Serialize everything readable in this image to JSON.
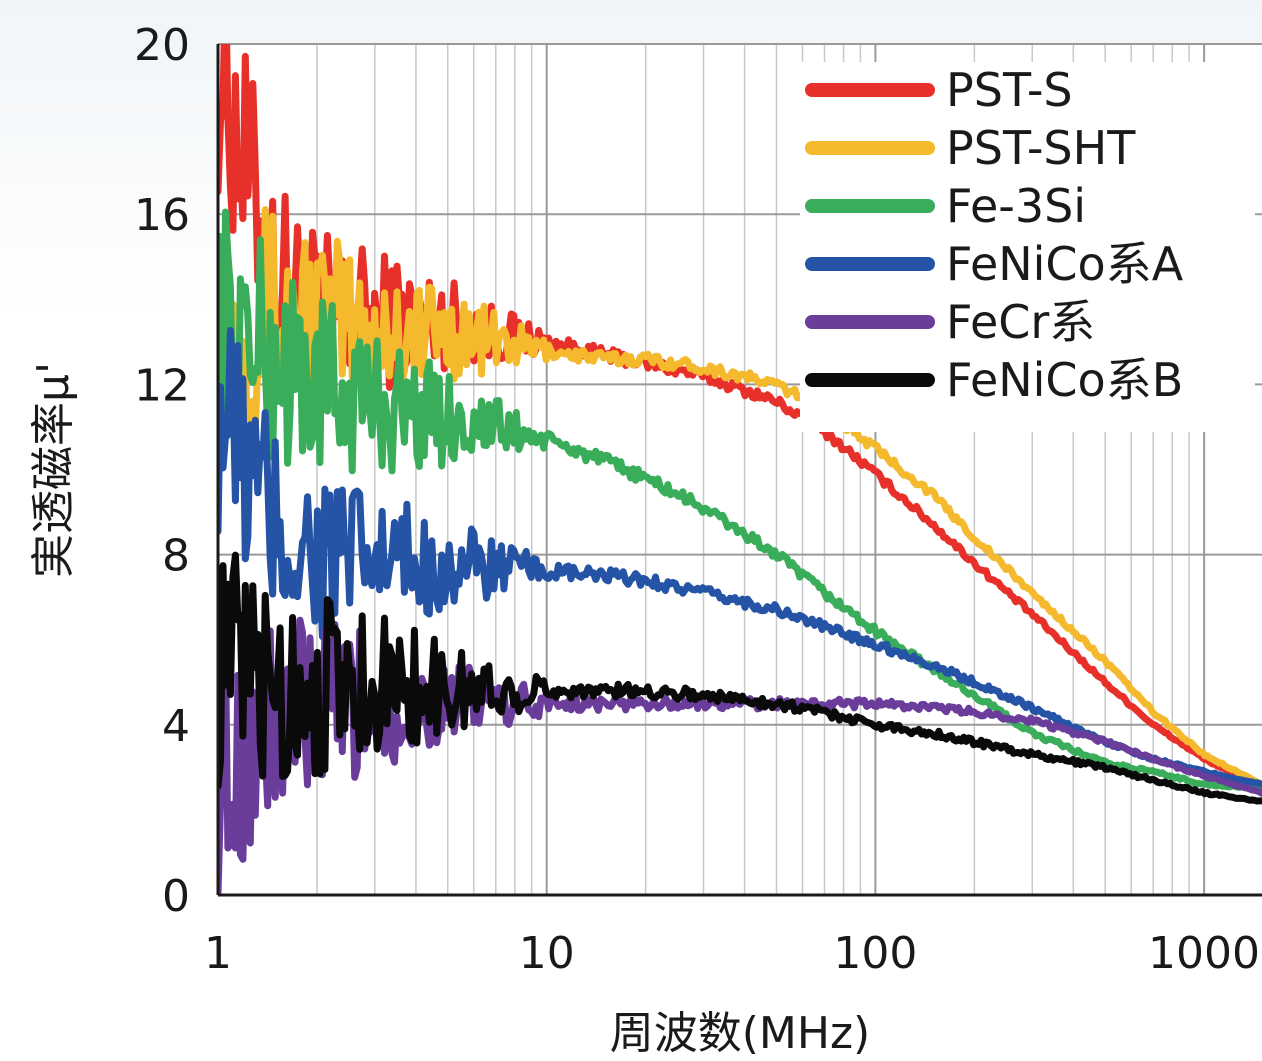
{
  "chart_data": {
    "type": "line",
    "xscale": "log",
    "xlim": [
      1,
      1500
    ],
    "ylim": [
      0,
      20
    ],
    "xlabel": "周波数(MHz)",
    "ylabel": "実透磁率μ'",
    "x_ticks": [
      "1",
      "10",
      "100",
      "1000"
    ],
    "y_ticks": [
      "0",
      "4",
      "8",
      "12",
      "16",
      "20"
    ],
    "grid": true,
    "legend_position": "top-right",
    "x": [
      1,
      1.5,
      2,
      3,
      5,
      7,
      10,
      15,
      20,
      30,
      50,
      70,
      100,
      150,
      200,
      300,
      500,
      700,
      1000,
      1500
    ],
    "series": [
      {
        "name": "PST-S",
        "color": "#e8302a",
        "values": [
          19.5,
          14.5,
          13.5,
          13.5,
          13.5,
          13.2,
          13.0,
          12.7,
          12.5,
          12.2,
          11.6,
          10.9,
          9.9,
          8.7,
          7.8,
          6.6,
          5.0,
          4.0,
          3.2,
          2.5
        ]
      },
      {
        "name": "PST-SHT",
        "color": "#f5b92e",
        "values": [
          13.0,
          13.8,
          13.5,
          13.3,
          13.2,
          13.0,
          12.8,
          12.6,
          12.6,
          12.4,
          12.0,
          11.4,
          10.5,
          9.4,
          8.4,
          7.1,
          5.5,
          4.3,
          3.3,
          2.6
        ]
      },
      {
        "name": "Fe-3Si",
        "color": "#3aad5a",
        "values": [
          13.5,
          12.5,
          12.0,
          11.6,
          11.2,
          11.0,
          10.7,
          10.2,
          9.8,
          9.1,
          8.0,
          7.1,
          6.2,
          5.3,
          4.7,
          3.8,
          3.1,
          2.9,
          2.6,
          2.5
        ]
      },
      {
        "name": "FeNiCo系A",
        "color": "#2553a5",
        "values": [
          11.5,
          8.5,
          8.0,
          7.8,
          7.7,
          7.7,
          7.6,
          7.5,
          7.4,
          7.1,
          6.7,
          6.3,
          5.9,
          5.4,
          5.0,
          4.4,
          3.6,
          3.2,
          2.9,
          2.6
        ]
      },
      {
        "name": "FeCr系",
        "color": "#6a3d9a",
        "values": [
          3.0,
          4.0,
          4.3,
          4.4,
          4.5,
          4.5,
          4.5,
          4.5,
          4.5,
          4.5,
          4.5,
          4.5,
          4.5,
          4.4,
          4.3,
          4.1,
          3.6,
          3.2,
          2.8,
          2.4
        ]
      },
      {
        "name": "FeNiCo系B",
        "color": "#0a0a0a",
        "values": [
          5.5,
          4.8,
          5.0,
          5.0,
          4.8,
          4.8,
          4.8,
          4.8,
          4.8,
          4.7,
          4.5,
          4.3,
          4.0,
          3.8,
          3.6,
          3.3,
          3.0,
          2.7,
          2.4,
          2.2
        ]
      }
    ]
  }
}
